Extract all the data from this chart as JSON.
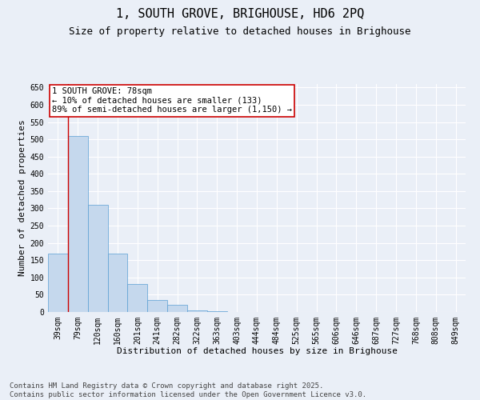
{
  "title": "1, SOUTH GROVE, BRIGHOUSE, HD6 2PQ",
  "subtitle": "Size of property relative to detached houses in Brighouse",
  "xlabel": "Distribution of detached houses by size in Brighouse",
  "ylabel": "Number of detached properties",
  "categories": [
    "39sqm",
    "79sqm",
    "120sqm",
    "160sqm",
    "201sqm",
    "241sqm",
    "282sqm",
    "322sqm",
    "363sqm",
    "403sqm",
    "444sqm",
    "484sqm",
    "525sqm",
    "565sqm",
    "606sqm",
    "646sqm",
    "687sqm",
    "727sqm",
    "768sqm",
    "808sqm",
    "849sqm"
  ],
  "values": [
    170,
    510,
    310,
    170,
    80,
    35,
    22,
    5,
    2,
    1,
    0,
    0,
    0,
    0,
    0,
    0,
    0,
    0,
    0,
    0,
    0
  ],
  "bar_color": "#c5d8ed",
  "bar_edge_color": "#5a9fd4",
  "annotation_text": "1 SOUTH GROVE: 78sqm\n← 10% of detached houses are smaller (133)\n89% of semi-detached houses are larger (1,150) →",
  "annotation_box_color": "#ffffff",
  "annotation_box_edge_color": "#cc0000",
  "marker_line_color": "#cc0000",
  "ylim": [
    0,
    660
  ],
  "yticks": [
    0,
    50,
    100,
    150,
    200,
    250,
    300,
    350,
    400,
    450,
    500,
    550,
    600,
    650
  ],
  "bg_color": "#eaeff7",
  "grid_color": "#ffffff",
  "footer_text": "Contains HM Land Registry data © Crown copyright and database right 2025.\nContains public sector information licensed under the Open Government Licence v3.0.",
  "title_fontsize": 11,
  "subtitle_fontsize": 9,
  "axis_label_fontsize": 8,
  "tick_fontsize": 7,
  "annotation_fontsize": 7.5,
  "footer_fontsize": 6.5
}
